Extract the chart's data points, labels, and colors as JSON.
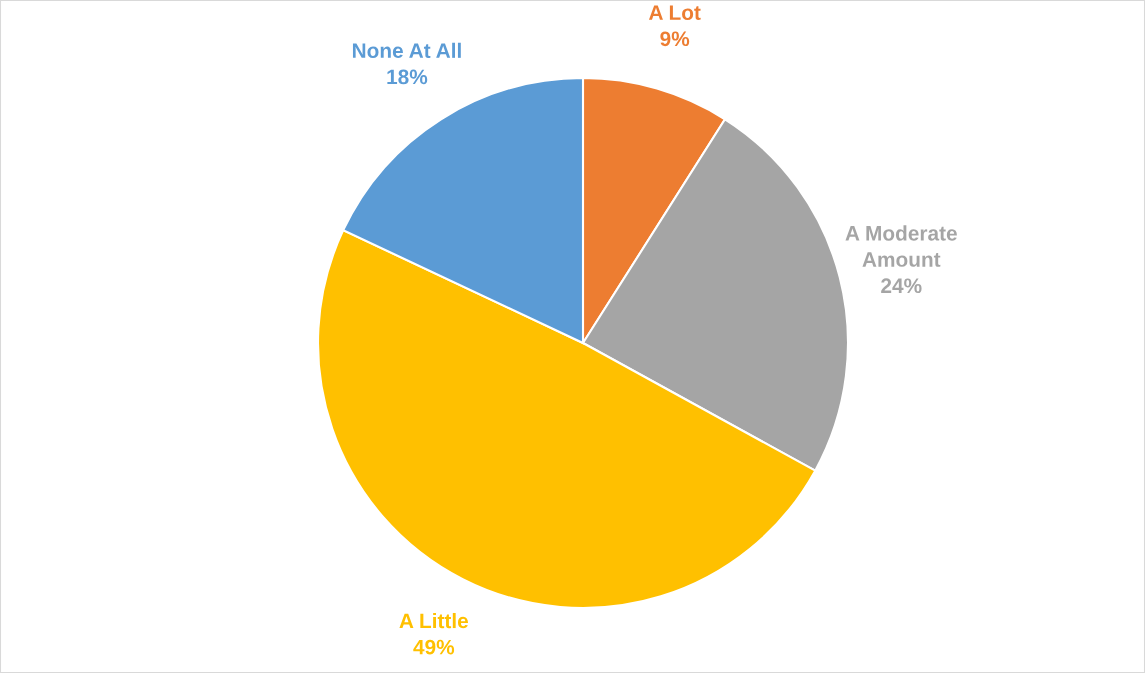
{
  "chart_data": {
    "type": "pie",
    "categories": [
      "A Lot",
      "A Moderate Amount",
      "A Little",
      "None At All"
    ],
    "values": [
      9,
      24,
      49,
      18
    ],
    "value_labels": [
      "9%",
      "24%",
      "49%",
      "18%"
    ],
    "colors": [
      "#ed7d31",
      "#a5a5a5",
      "#ffc000",
      "#5b9bd5"
    ],
    "legend": false
  }
}
